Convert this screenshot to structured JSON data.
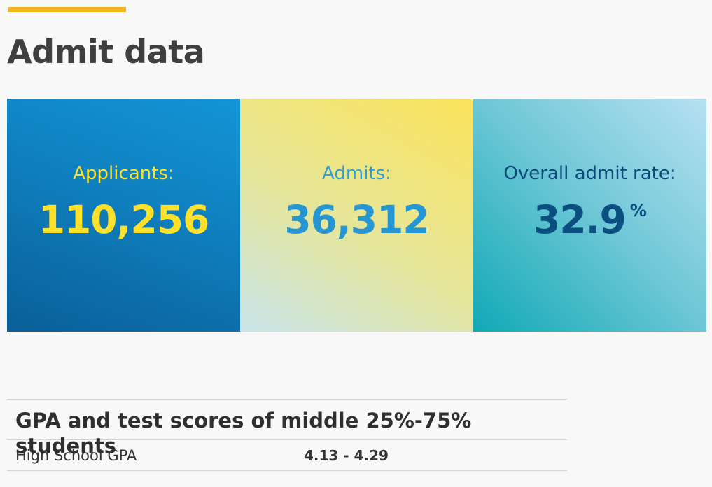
{
  "header": {
    "title": "Admit data"
  },
  "stats": {
    "applicants": {
      "label": "Applicants:",
      "value": "110,256"
    },
    "admits": {
      "label": "Admits:",
      "value": "36,312"
    },
    "admit_rate": {
      "label": "Overall admit rate:",
      "value": "32.9",
      "suffix": "%"
    }
  },
  "scores": {
    "heading": "GPA and test scores of middle 25%-75% students",
    "rows": [
      {
        "label": "High School GPA",
        "value": "4.13 - 4.29"
      }
    ]
  },
  "colors": {
    "accent": "#f2b51c",
    "applicants_bg": "#0f7fbe",
    "admits_bg": "#fbe35a",
    "rate_bg": "#74c9d8"
  }
}
